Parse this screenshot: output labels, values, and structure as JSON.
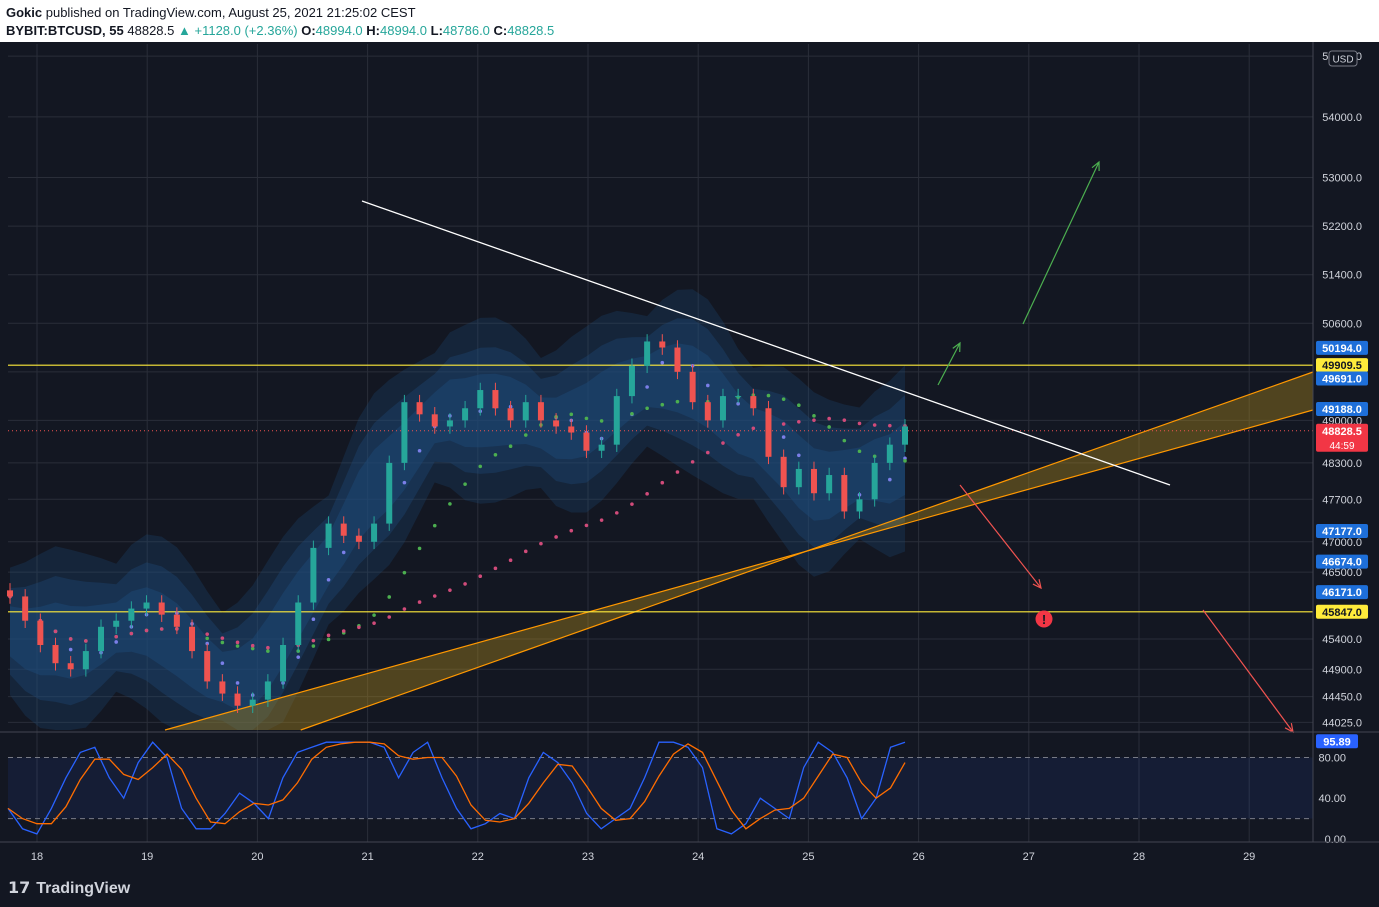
{
  "header": {
    "author": "Gokic",
    "published": " published on TradingView.com, August 25, 2021 21:25:02 CEST",
    "symbol": "BYBIT:BTCUSD, 55",
    "last": "48828.5",
    "change": "▲ +1128.0 (+2.36%)",
    "o_label": "O:",
    "o_value": "48994.0",
    "h_label": "H:",
    "h_value": "48994.0",
    "l_label": "L:",
    "l_value": "48786.0",
    "c_label": "C:",
    "c_value": "48828.5"
  },
  "footer": {
    "logo_text": "TradingView",
    "logo_icon": "tradingview-logo-icon"
  },
  "colors": {
    "background": "#131722",
    "up": "#26a69a",
    "down": "#ef5350",
    "bands": "#1e4a7a",
    "yellow": "#ffeb3b",
    "orange": "#ff9800",
    "stoch_k": "#2962ff",
    "stoch_d": "#ff6d00"
  },
  "chart_data": {
    "type": "candlestick",
    "currency": "USD",
    "x_ticks": [
      "18",
      "19",
      "20",
      "21",
      "22",
      "23",
      "24",
      "25",
      "26",
      "27",
      "28",
      "29"
    ],
    "y_ticks": [
      "55000.0",
      "54000.0",
      "53000.0",
      "52200.0",
      "51400.0",
      "50600.0",
      "49800.0",
      "49000.0",
      "48300.0",
      "47700.0",
      "47000.0",
      "46500.0",
      "45400.0",
      "44900.0",
      "44450.0",
      "44025.0"
    ],
    "ylim": [
      43900,
      55200
    ],
    "price_labels": [
      {
        "value": 50194.0,
        "text": "50194.0",
        "color": "#1e6fd9"
      },
      {
        "value": 49909.5,
        "text": "49909.5",
        "color": "#ffeb3b"
      },
      {
        "value": 49691.0,
        "text": "49691.0",
        "color": "#1e6fd9"
      },
      {
        "value": 49188.0,
        "text": "49188.0",
        "color": "#1e6fd9"
      },
      {
        "value": 48828.5,
        "text": "48828.5",
        "color": "#f23645",
        "sub": "44:59"
      },
      {
        "value": 47177.0,
        "text": "47177.0",
        "color": "#1e6fd9"
      },
      {
        "value": 46674.0,
        "text": "46674.0",
        "color": "#1e6fd9"
      },
      {
        "value": 46171.0,
        "text": "46171.0",
        "color": "#1e6fd9"
      },
      {
        "value": 45847.0,
        "text": "45847.0",
        "color": "#ffeb3b"
      }
    ],
    "horizontal_levels": [
      49909.5,
      45847.0
    ],
    "close_series": [
      46100,
      45700,
      45300,
      45000,
      44900,
      45200,
      45600,
      45700,
      45900,
      46000,
      45800,
      45600,
      45200,
      44700,
      44500,
      44300,
      44400,
      44700,
      45300,
      46000,
      46900,
      47300,
      47100,
      47000,
      47300,
      48300,
      49300,
      49100,
      48900,
      49000,
      49200,
      49500,
      49200,
      49000,
      49300,
      49000,
      48900,
      48800,
      48500,
      48600,
      49400,
      49900,
      50300,
      50200,
      49800,
      49300,
      49000,
      49400,
      49400,
      49200,
      48400,
      47900,
      48200,
      47800,
      48100,
      47500,
      47700,
      48300,
      48600,
      48900
    ],
    "stochastic": {
      "ylim": [
        -3,
        105
      ],
      "y_ticks": [
        "80.00",
        "40.00",
        "0.00"
      ],
      "levels": [
        80,
        20
      ],
      "last_value": "95.89",
      "k": [
        30,
        10,
        5,
        30,
        60,
        85,
        90,
        60,
        40,
        75,
        95,
        80,
        30,
        10,
        10,
        25,
        45,
        35,
        20,
        60,
        85,
        90,
        95,
        95,
        95,
        95,
        90,
        60,
        85,
        95,
        60,
        30,
        10,
        15,
        25,
        20,
        60,
        85,
        75,
        55,
        25,
        10,
        20,
        30,
        60,
        95,
        95,
        90,
        70,
        10,
        5,
        15,
        40,
        30,
        20,
        70,
        95,
        85,
        60,
        20,
        40,
        90,
        95
      ]
    },
    "annotations": {
      "resistance_trendline": "white descending",
      "channel": "orange ascending channel",
      "bull_arrows": 2,
      "bear_arrows": 2,
      "alert_icon": "alert-icon"
    }
  }
}
